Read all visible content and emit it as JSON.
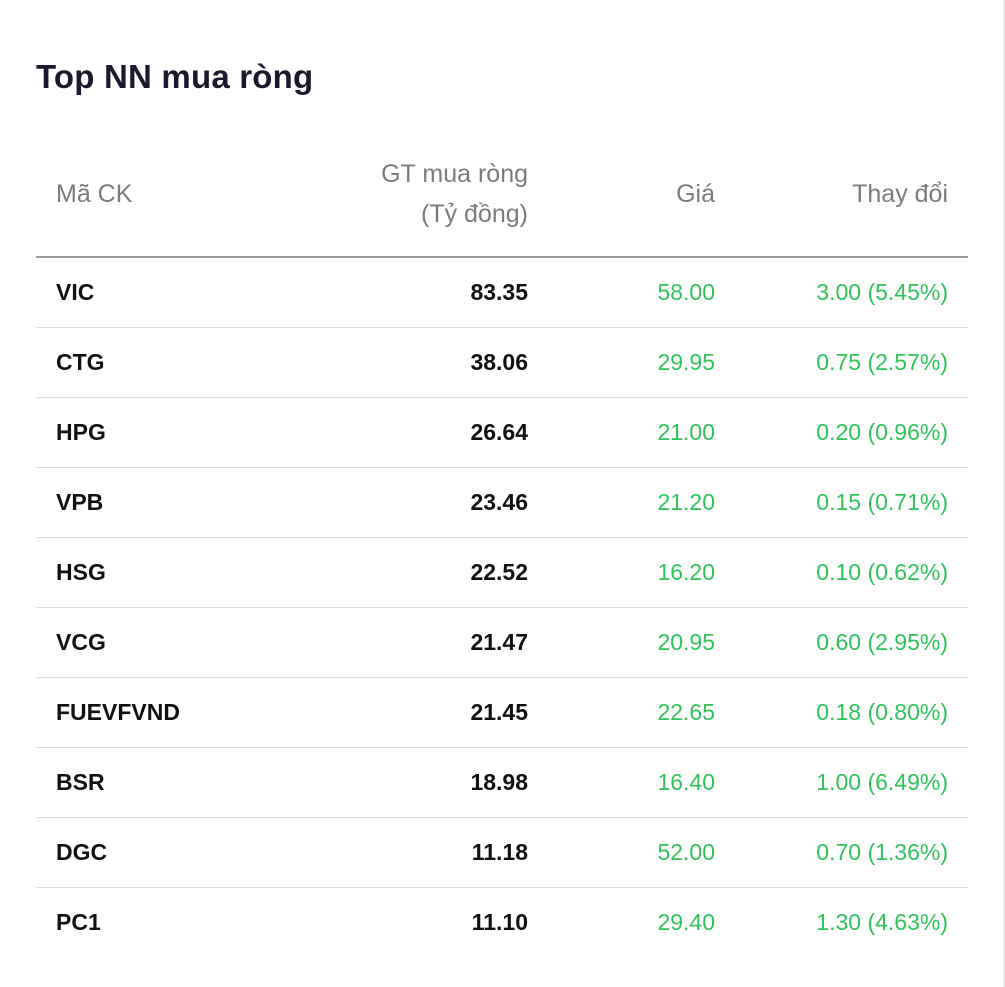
{
  "title": "Top NN mua ròng",
  "columns": {
    "symbol": "Mã CK",
    "net_value_line1": "GT mua ròng",
    "net_value_line2": "(Tỷ đồng)",
    "price": "Giá",
    "change": "Thay đổi"
  },
  "colors": {
    "up": "#2fc35a",
    "text": "#111111",
    "header_text": "#7b7b7b"
  },
  "rows": [
    {
      "symbol": "VIC",
      "net_value": "83.35",
      "price": "58.00",
      "change": "3.00 (5.45%)"
    },
    {
      "symbol": "CTG",
      "net_value": "38.06",
      "price": "29.95",
      "change": "0.75 (2.57%)"
    },
    {
      "symbol": "HPG",
      "net_value": "26.64",
      "price": "21.00",
      "change": "0.20 (0.96%)"
    },
    {
      "symbol": "VPB",
      "net_value": "23.46",
      "price": "21.20",
      "change": "0.15 (0.71%)"
    },
    {
      "symbol": "HSG",
      "net_value": "22.52",
      "price": "16.20",
      "change": "0.10 (0.62%)"
    },
    {
      "symbol": "VCG",
      "net_value": "21.47",
      "price": "20.95",
      "change": "0.60 (2.95%)"
    },
    {
      "symbol": "FUEVFVND",
      "net_value": "21.45",
      "price": "22.65",
      "change": "0.18 (0.80%)"
    },
    {
      "symbol": "BSR",
      "net_value": "18.98",
      "price": "16.40",
      "change": "1.00 (6.49%)"
    },
    {
      "symbol": "DGC",
      "net_value": "11.18",
      "price": "52.00",
      "change": "0.70 (1.36%)"
    },
    {
      "symbol": "PC1",
      "net_value": "11.10",
      "price": "29.40",
      "change": "1.30 (4.63%)"
    }
  ]
}
